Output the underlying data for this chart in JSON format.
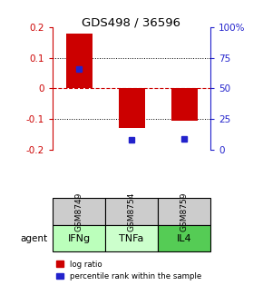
{
  "title": "GDS498 / 36596",
  "samples": [
    "GSM8749",
    "GSM8754",
    "GSM8759"
  ],
  "agents": [
    "IFNg",
    "TNFa",
    "IL4"
  ],
  "log_ratios": [
    0.18,
    -0.13,
    -0.105
  ],
  "percentile_ranks_pct": [
    66,
    8,
    9
  ],
  "bar_color": "#cc0000",
  "dot_color": "#2222cc",
  "ylim": [
    -0.2,
    0.2
  ],
  "yticks_left": [
    -0.2,
    -0.1,
    0.0,
    0.1,
    0.2
  ],
  "yticks_left_labels": [
    "-0.2",
    "-0.1",
    "0",
    "0.1",
    "0.2"
  ],
  "yticks_right_pos": [
    -0.2,
    -0.1,
    0.0,
    0.1,
    0.2
  ],
  "yticks_right_labels": [
    "0",
    "25",
    "50",
    "75",
    "100%"
  ],
  "grid_ticks_dotted": [
    -0.1,
    0.1
  ],
  "zero_line": 0.0,
  "agent_colors": [
    "#bbffbb",
    "#ccffcc",
    "#55cc55"
  ],
  "sample_bg": "#cccccc",
  "bar_width": 0.5
}
